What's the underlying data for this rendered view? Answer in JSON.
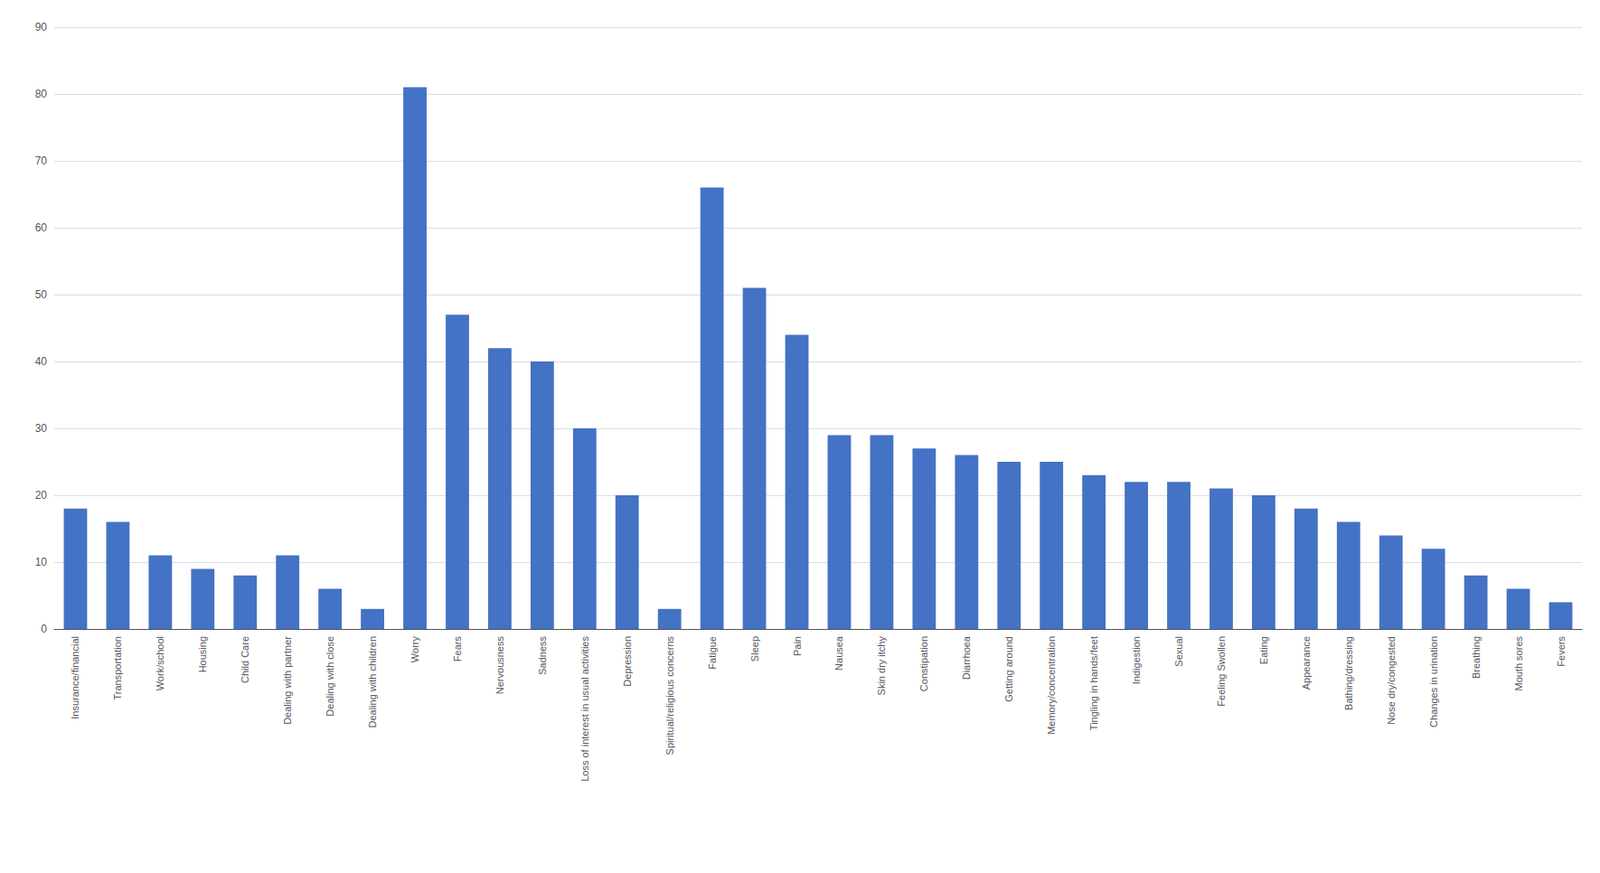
{
  "chart_data": {
    "type": "bar",
    "categories": [
      "Insurance/financial",
      "Transportation",
      "Work/school",
      "Housing",
      "Child Care",
      "Dealing with partner",
      "Dealing with close",
      "Dealing with children",
      "Worry",
      "Fears",
      "Nervousness",
      "Sadness",
      "Loss of interest in usual activities",
      "Depression",
      "Spiritual/religious concerns",
      "Fatigue",
      "Sleep",
      "Pain",
      "Nausea",
      "Skin dry itchy",
      "Constipation",
      "Diarrhoea",
      "Getting around",
      "Memory/concentration",
      "Tingling in hands/feet",
      "Indigestion",
      "Sexual",
      "Feeling Swollen",
      "Eating",
      "Appearance",
      "Bathing/dressing",
      "Nose dry/congested",
      "Changes in urination",
      "Breathing",
      "Mouth sores",
      "Fevers"
    ],
    "values": [
      18,
      16,
      11,
      9,
      8,
      11,
      6,
      3,
      81,
      47,
      42,
      40,
      30,
      20,
      3,
      66,
      51,
      44,
      29,
      29,
      27,
      26,
      25,
      25,
      23,
      22,
      22,
      21,
      20,
      18,
      16,
      14,
      12,
      8,
      6,
      4
    ],
    "color": "#4472C4",
    "ylim": [
      0,
      90
    ],
    "yticks": [
      0,
      10,
      20,
      30,
      40,
      50,
      60,
      70,
      80,
      90
    ],
    "grid": true
  }
}
